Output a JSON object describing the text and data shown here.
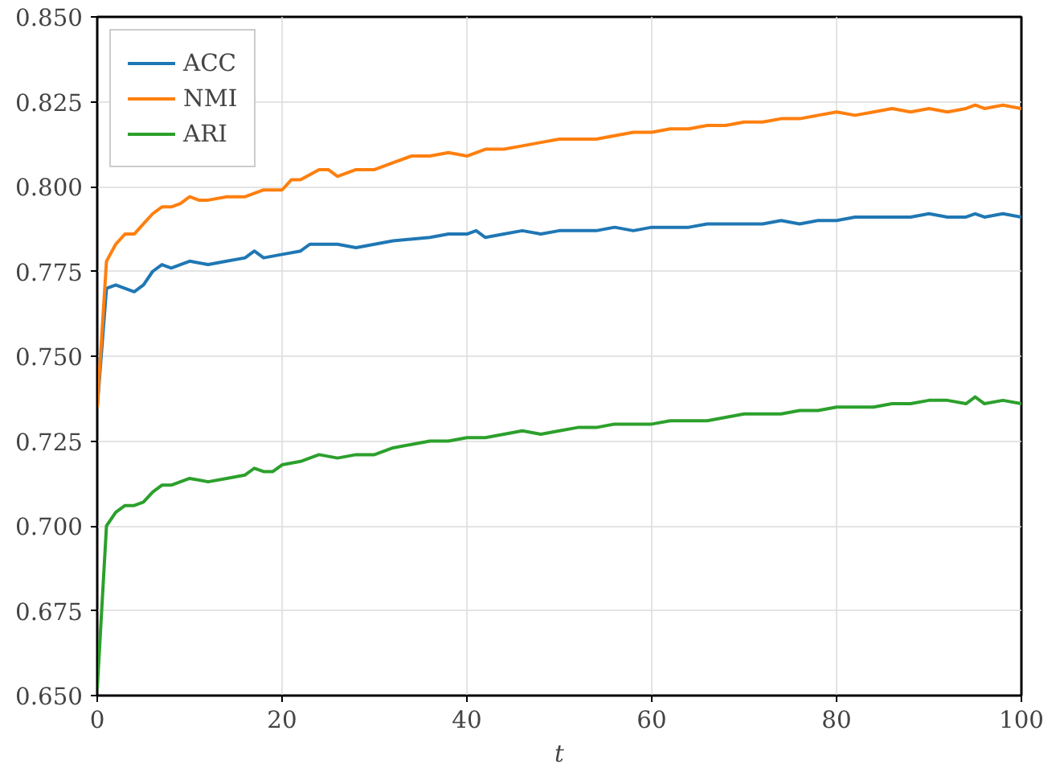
{
  "chart_data": {
    "type": "line",
    "xlabel": "t",
    "xlim": [
      0,
      100
    ],
    "ylim": [
      0.65,
      0.85
    ],
    "xticks": [
      0,
      20,
      40,
      60,
      80,
      100
    ],
    "yticks": [
      {
        "value": 0.65,
        "label": "0.650"
      },
      {
        "value": 0.675,
        "label": "0.675"
      },
      {
        "value": 0.7,
        "label": "0.700"
      },
      {
        "value": 0.725,
        "label": "0.725"
      },
      {
        "value": 0.75,
        "label": "0.750"
      },
      {
        "value": 0.775,
        "label": "0.775"
      },
      {
        "value": 0.8,
        "label": "0.800"
      },
      {
        "value": 0.825,
        "label": "0.825"
      },
      {
        "value": 0.85,
        "label": "0.850"
      }
    ],
    "grid": true,
    "legend": "top left",
    "line_style": "solid",
    "series": [
      {
        "name": "ACC",
        "color": "#1f77b4",
        "x": [
          0,
          1,
          2,
          4,
          5,
          6,
          7,
          8,
          10,
          12,
          14,
          16,
          17,
          18,
          20,
          22,
          23,
          26,
          28,
          30,
          32,
          36,
          38,
          40,
          41,
          42,
          44,
          46,
          48,
          50,
          52,
          54,
          56,
          58,
          60,
          62,
          64,
          66,
          68,
          70,
          72,
          74,
          76,
          78,
          80,
          82,
          84,
          86,
          88,
          90,
          92,
          94,
          95,
          96,
          98,
          100
        ],
        "values": [
          0.735,
          0.77,
          0.771,
          0.769,
          0.771,
          0.775,
          0.777,
          0.776,
          0.778,
          0.777,
          0.778,
          0.779,
          0.781,
          0.779,
          0.78,
          0.781,
          0.783,
          0.783,
          0.782,
          0.783,
          0.784,
          0.785,
          0.786,
          0.786,
          0.787,
          0.785,
          0.786,
          0.787,
          0.786,
          0.787,
          0.787,
          0.787,
          0.788,
          0.787,
          0.788,
          0.788,
          0.788,
          0.789,
          0.789,
          0.789,
          0.789,
          0.79,
          0.789,
          0.79,
          0.79,
          0.791,
          0.791,
          0.791,
          0.791,
          0.792,
          0.791,
          0.791,
          0.792,
          0.791,
          0.792,
          0.791
        ]
      },
      {
        "name": "NMI",
        "color": "#ff7f0e",
        "x": [
          0,
          1,
          2,
          3,
          4,
          5,
          6,
          7,
          8,
          9,
          10,
          11,
          12,
          14,
          16,
          18,
          20,
          21,
          22,
          24,
          25,
          26,
          28,
          30,
          32,
          34,
          36,
          38,
          40,
          42,
          44,
          46,
          48,
          50,
          52,
          54,
          56,
          58,
          60,
          62,
          64,
          66,
          68,
          70,
          72,
          74,
          76,
          78,
          80,
          82,
          84,
          86,
          88,
          90,
          92,
          94,
          95,
          96,
          98,
          100
        ],
        "values": [
          0.735,
          0.778,
          0.783,
          0.786,
          0.786,
          0.789,
          0.792,
          0.794,
          0.794,
          0.795,
          0.797,
          0.796,
          0.796,
          0.797,
          0.797,
          0.799,
          0.799,
          0.802,
          0.802,
          0.805,
          0.805,
          0.803,
          0.805,
          0.805,
          0.807,
          0.809,
          0.809,
          0.81,
          0.809,
          0.811,
          0.811,
          0.812,
          0.813,
          0.814,
          0.814,
          0.814,
          0.815,
          0.816,
          0.816,
          0.817,
          0.817,
          0.818,
          0.818,
          0.819,
          0.819,
          0.82,
          0.82,
          0.821,
          0.822,
          0.821,
          0.822,
          0.823,
          0.822,
          0.823,
          0.822,
          0.823,
          0.824,
          0.823,
          0.824,
          0.823
        ]
      },
      {
        "name": "ARI",
        "color": "#2ca02c",
        "x": [
          0,
          1,
          2,
          3,
          4,
          5,
          6,
          7,
          8,
          10,
          12,
          14,
          16,
          17,
          18,
          19,
          20,
          22,
          24,
          26,
          28,
          30,
          32,
          34,
          36,
          38,
          40,
          42,
          44,
          46,
          48,
          50,
          52,
          54,
          56,
          58,
          60,
          62,
          64,
          66,
          68,
          70,
          72,
          74,
          76,
          78,
          80,
          82,
          84,
          86,
          88,
          90,
          92,
          94,
          95,
          96,
          98,
          100
        ],
        "values": [
          0.652,
          0.7,
          0.704,
          0.706,
          0.706,
          0.707,
          0.71,
          0.712,
          0.712,
          0.714,
          0.713,
          0.714,
          0.715,
          0.717,
          0.716,
          0.716,
          0.718,
          0.719,
          0.721,
          0.72,
          0.721,
          0.721,
          0.723,
          0.724,
          0.725,
          0.725,
          0.726,
          0.726,
          0.727,
          0.728,
          0.727,
          0.728,
          0.729,
          0.729,
          0.73,
          0.73,
          0.73,
          0.731,
          0.731,
          0.731,
          0.732,
          0.733,
          0.733,
          0.733,
          0.734,
          0.734,
          0.735,
          0.735,
          0.735,
          0.736,
          0.736,
          0.737,
          0.737,
          0.736,
          0.738,
          0.736,
          0.737,
          0.736
        ]
      }
    ]
  }
}
